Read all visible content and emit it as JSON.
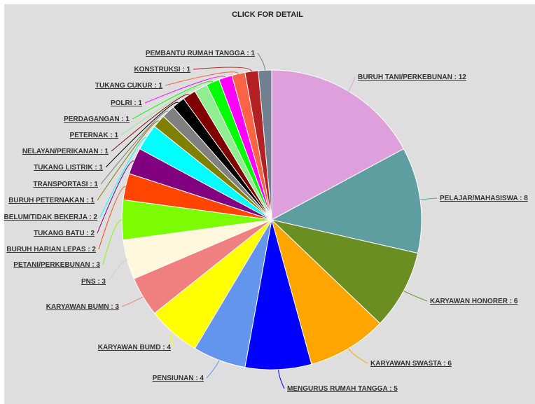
{
  "header": {
    "title": "CLICK FOR DETAIL"
  },
  "chart_data": {
    "type": "pie",
    "title": "CLICK FOR DETAIL",
    "slices": [
      {
        "label": "BURUH TANI/PERKEBUNAN : 12",
        "value": 12,
        "color": "#dda0dd"
      },
      {
        "label": "PELAJAR/MAHASISWA : 8",
        "value": 8,
        "color": "#5f9ea0"
      },
      {
        "label": "KARYAWAN HONORER : 6",
        "value": 6,
        "color": "#6b8e23"
      },
      {
        "label": "KARYAWAN SWASTA : 6",
        "value": 6,
        "color": "#ffa500"
      },
      {
        "label": "MENGURUS RUMAH TANGGA : 5",
        "value": 5,
        "color": "#0000ff"
      },
      {
        "label": "PENSIUNAN : 4",
        "value": 4,
        "color": "#6495ed"
      },
      {
        "label": "KARYAWAN BUMD : 4",
        "value": 4,
        "color": "#ffff00"
      },
      {
        "label": "KARYAWAN BUMN : 3",
        "value": 3,
        "color": "#f08080"
      },
      {
        "label": "PNS : 3",
        "value": 3,
        "color": "#fff8dc"
      },
      {
        "label": "PETANI/PERKEBUNAN : 3",
        "value": 3,
        "color": "#7cfc00"
      },
      {
        "label": "BURUH HARIAN LEPAS : 2",
        "value": 2,
        "color": "#ff4500"
      },
      {
        "label": "TUKANG BATU : 2",
        "value": 2,
        "color": "#800080"
      },
      {
        "label": "BELUM/TIDAK BEKERJA : 2",
        "value": 2,
        "color": "#00ffff"
      },
      {
        "label": "BURUH PETERNAKAN : 1",
        "value": 1,
        "color": "#808000"
      },
      {
        "label": "TRANSPORTASI : 1",
        "value": 1,
        "color": "#808080"
      },
      {
        "label": "TUKANG LISTRIK : 1",
        "value": 1,
        "color": "#000000"
      },
      {
        "label": "NELAYAN/PERIKANAN : 1",
        "value": 1,
        "color": "#800000"
      },
      {
        "label": "PETERNAK : 1",
        "value": 1,
        "color": "#90ee90"
      },
      {
        "label": "PERDAGANGAN : 1",
        "value": 1,
        "color": "#00ff00"
      },
      {
        "label": "POLRI : 1",
        "value": 1,
        "color": "#ff00ff"
      },
      {
        "label": "TUKANG CUKUR : 1",
        "value": 1,
        "color": "#ff6347"
      },
      {
        "label": "KONSTRUKSI : 1",
        "value": 1,
        "color": "#b22222"
      },
      {
        "label": "PEMBANTU RUMAH TANGGA : 1",
        "value": 1,
        "color": "#708090"
      }
    ]
  }
}
